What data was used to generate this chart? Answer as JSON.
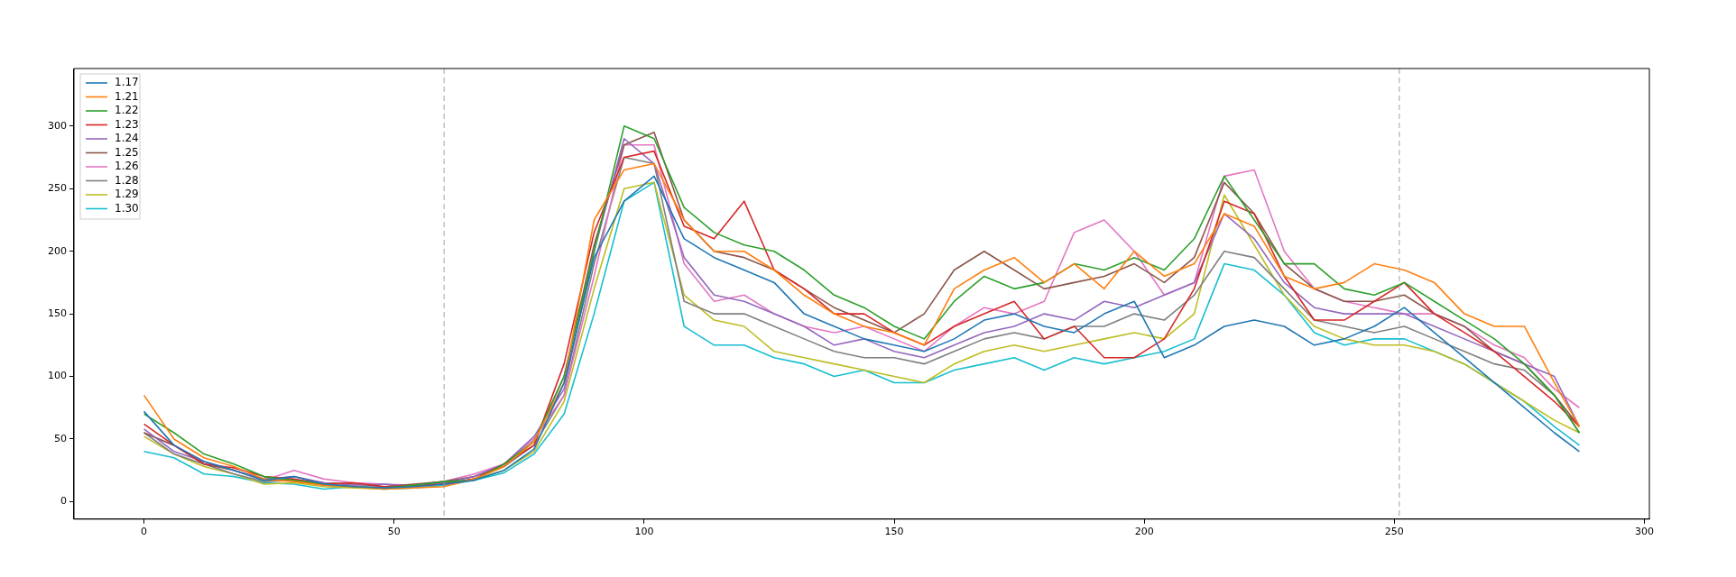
{
  "chart_data": {
    "type": "line",
    "x": [
      0,
      6,
      12,
      18,
      24,
      30,
      36,
      42,
      48,
      54,
      60,
      66,
      72,
      78,
      84,
      90,
      96,
      102,
      108,
      114,
      120,
      126,
      132,
      138,
      144,
      150,
      156,
      162,
      168,
      174,
      180,
      186,
      192,
      198,
      204,
      210,
      216,
      222,
      228,
      234,
      240,
      246,
      252,
      258,
      264,
      270,
      276,
      282,
      287
    ],
    "xlim": [
      -14,
      301
    ],
    "xticks": [
      0,
      50,
      100,
      150,
      200,
      250,
      300
    ],
    "ylim": [
      -14,
      346
    ],
    "yticks": [
      0,
      50,
      100,
      150,
      200,
      250,
      300
    ],
    "grid": false,
    "legend": "top left",
    "marker": "none",
    "line_style": "solid",
    "ref_lines": [
      {
        "axis": "x",
        "value": 60,
        "color": "#a0a0a0",
        "line_style": "dashed"
      },
      {
        "axis": "x",
        "value": 251,
        "color": "#a0a0a0",
        "line_style": "dashed"
      }
    ],
    "series": [
      {
        "name": "1.17",
        "color": "#1f77b4",
        "values": [
          72,
          45,
          32,
          25,
          17,
          20,
          14,
          12,
          11,
          12,
          14,
          17,
          25,
          42,
          95,
          195,
          240,
          260,
          210,
          195,
          185,
          175,
          150,
          140,
          130,
          125,
          120,
          130,
          145,
          150,
          140,
          135,
          150,
          160,
          115,
          125,
          140,
          145,
          140,
          125,
          130,
          140,
          155,
          135,
          115,
          95,
          75,
          55,
          40
        ]
      },
      {
        "name": "1.21",
        "color": "#ff7f0e",
        "values": [
          85,
          50,
          35,
          28,
          18,
          16,
          13,
          12,
          10,
          11,
          12,
          18,
          28,
          48,
          95,
          225,
          265,
          270,
          225,
          200,
          200,
          185,
          165,
          150,
          140,
          135,
          125,
          170,
          185,
          195,
          175,
          190,
          170,
          200,
          180,
          190,
          230,
          220,
          180,
          170,
          175,
          190,
          185,
          175,
          150,
          140,
          140,
          95,
          60
        ]
      },
      {
        "name": "1.22",
        "color": "#2ca02c",
        "values": [
          70,
          55,
          38,
          30,
          20,
          17,
          14,
          12,
          11,
          13,
          16,
          17,
          30,
          48,
          100,
          200,
          300,
          290,
          235,
          215,
          205,
          200,
          185,
          165,
          155,
          140,
          130,
          160,
          180,
          170,
          175,
          190,
          185,
          195,
          185,
          210,
          260,
          225,
          190,
          190,
          170,
          165,
          175,
          160,
          145,
          130,
          110,
          85,
          55
        ]
      },
      {
        "name": "1.23",
        "color": "#d62728",
        "values": [
          62,
          45,
          30,
          27,
          20,
          18,
          14,
          15,
          12,
          13,
          14,
          18,
          30,
          45,
          110,
          215,
          275,
          280,
          220,
          210,
          240,
          185,
          170,
          150,
          150,
          135,
          125,
          140,
          150,
          160,
          130,
          140,
          115,
          115,
          130,
          170,
          240,
          230,
          180,
          145,
          145,
          160,
          175,
          150,
          135,
          120,
          100,
          80,
          60
        ]
      },
      {
        "name": "1.24",
        "color": "#9467bd",
        "values": [
          58,
          40,
          32,
          25,
          18,
          20,
          15,
          13,
          14,
          12,
          15,
          20,
          30,
          52,
          90,
          200,
          290,
          270,
          195,
          165,
          160,
          150,
          140,
          125,
          130,
          120,
          115,
          125,
          135,
          140,
          150,
          145,
          160,
          155,
          165,
          175,
          230,
          210,
          175,
          155,
          150,
          150,
          150,
          140,
          130,
          120,
          110,
          100,
          60
        ]
      },
      {
        "name": "1.25",
        "color": "#8c564b",
        "values": [
          55,
          45,
          30,
          25,
          18,
          17,
          15,
          14,
          12,
          14,
          16,
          20,
          28,
          48,
          100,
          205,
          285,
          295,
          225,
          200,
          195,
          185,
          170,
          155,
          145,
          135,
          150,
          185,
          200,
          185,
          170,
          175,
          180,
          190,
          175,
          195,
          255,
          230,
          190,
          170,
          160,
          160,
          165,
          150,
          140,
          120,
          110,
          85,
          60
        ]
      },
      {
        "name": "1.26",
        "color": "#e377c2",
        "values": [
          55,
          45,
          32,
          25,
          17,
          25,
          18,
          15,
          14,
          13,
          16,
          22,
          30,
          50,
          85,
          180,
          285,
          285,
          190,
          160,
          165,
          150,
          140,
          135,
          140,
          130,
          120,
          140,
          155,
          150,
          160,
          215,
          225,
          200,
          165,
          175,
          260,
          265,
          200,
          170,
          160,
          155,
          150,
          150,
          140,
          125,
          115,
          90,
          75
        ]
      },
      {
        "name": "1.28",
        "color": "#7f7f7f",
        "values": [
          55,
          38,
          30,
          22,
          16,
          17,
          13,
          12,
          11,
          13,
          15,
          18,
          28,
          45,
          85,
          190,
          275,
          270,
          160,
          150,
          150,
          140,
          130,
          120,
          115,
          115,
          110,
          120,
          130,
          135,
          130,
          140,
          140,
          150,
          145,
          165,
          200,
          195,
          170,
          145,
          140,
          135,
          140,
          130,
          120,
          110,
          105,
          85,
          55
        ]
      },
      {
        "name": "1.29",
        "color": "#bcbd22",
        "values": [
          52,
          38,
          28,
          22,
          14,
          15,
          12,
          11,
          10,
          12,
          14,
          18,
          25,
          40,
          80,
          170,
          250,
          255,
          165,
          145,
          140,
          120,
          115,
          110,
          105,
          100,
          95,
          110,
          120,
          125,
          120,
          125,
          130,
          135,
          130,
          150,
          245,
          205,
          165,
          140,
          130,
          125,
          125,
          120,
          110,
          95,
          80,
          65,
          55
        ]
      },
      {
        "name": "1.30",
        "color": "#17becf",
        "values": [
          40,
          35,
          22,
          20,
          15,
          14,
          10,
          12,
          10,
          11,
          13,
          17,
          23,
          38,
          70,
          150,
          240,
          255,
          140,
          125,
          125,
          115,
          110,
          100,
          105,
          95,
          95,
          105,
          110,
          115,
          105,
          115,
          110,
          115,
          120,
          130,
          190,
          185,
          165,
          135,
          125,
          130,
          130,
          120,
          110,
          95,
          80,
          60,
          45
        ]
      }
    ]
  }
}
